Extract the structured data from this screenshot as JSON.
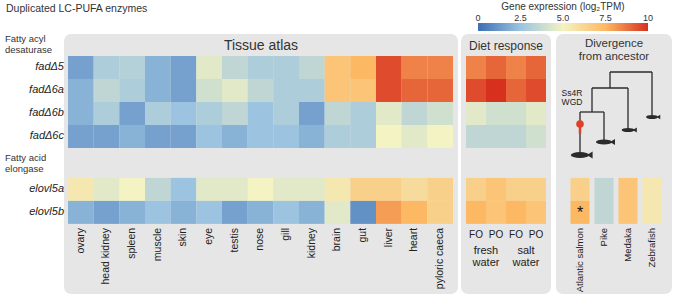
{
  "chart_data": {
    "type": "heatmap",
    "title": "Duplicated LC-PUFA enzymes",
    "colorbar": {
      "label": "Gene expression (log₂TPM)",
      "range": [
        0,
        10
      ],
      "ticks": [
        0,
        2.5,
        {
          "value": 5,
          "label": "5.0"
        },
        7.5,
        10
      ]
    },
    "row_groups": [
      {
        "label": "Fatty acyl desaturase",
        "rows": [
          "fadΔ5",
          "fadΔ6a",
          "fadΔ6b",
          "fadΔ6c"
        ]
      },
      {
        "label": "Fatty acid elongase",
        "rows": [
          "elovl5a",
          "elovl5b"
        ]
      }
    ],
    "panels": [
      {
        "title": "Tissue atlas",
        "columns": [
          "ovary",
          "head kidney",
          "spleen",
          "muscle",
          "skin",
          "eye",
          "testis",
          "nose",
          "gill",
          "kidney",
          "brain",
          "gut",
          "liver",
          "heart",
          "pyloric caeca"
        ],
        "rows": [
          {
            "name": "fadΔ5",
            "values": [
              1.5,
              3,
              3.2,
              2,
              1.5,
              4.5,
              3.5,
              3,
              3,
              3.5,
              7,
              7.5,
              9.5,
              8.5,
              8.5
            ]
          },
          {
            "name": "fadΔ6a",
            "values": [
              2,
              3.5,
              3,
              2,
              1.5,
              4,
              4.5,
              3.5,
              3,
              3,
              7,
              7,
              9.5,
              9,
              9
            ]
          },
          {
            "name": "fadΔ6b",
            "values": [
              2,
              3,
              1.5,
              3,
              2.5,
              3,
              3.5,
              2.5,
              3,
              1.5,
              3.5,
              3,
              4.5,
              3.5,
              4
            ]
          },
          {
            "name": "fadΔ6c",
            "values": [
              1.5,
              1.5,
              2,
              1.5,
              1.5,
              2.5,
              2,
              2.5,
              2.5,
              2,
              3,
              3,
              5,
              4.5,
              5
            ]
          },
          {
            "name": "elovl5a",
            "values": [
              5.5,
              4.5,
              5,
              3.5,
              2.5,
              4.5,
              4.5,
              5,
              4.5,
              4.5,
              5.5,
              6.5,
              6.5,
              6,
              6.5
            ]
          },
          {
            "name": "elovl5b",
            "values": [
              2,
              1.5,
              2,
              2.5,
              2,
              2.5,
              1.5,
              2,
              2.5,
              2,
              4.5,
              1,
              8,
              7.5,
              6.5
            ]
          }
        ]
      },
      {
        "title": "Diet response",
        "columns": [
          "FO",
          "PO",
          "FO",
          "PO"
        ],
        "column_groups": [
          {
            "label": "fresh water",
            "size": 2
          },
          {
            "label": "salt water",
            "size": 2
          }
        ],
        "rows": [
          {
            "name": "fadΔ5",
            "values": [
              8.5,
              9,
              8.5,
              9
            ]
          },
          {
            "name": "fadΔ6a",
            "values": [
              9.5,
              10,
              9,
              9.5
            ]
          },
          {
            "name": "fadΔ6b",
            "values": [
              4.5,
              4,
              4,
              4.5
            ]
          },
          {
            "name": "fadΔ6c",
            "values": [
              3.5,
              3.5,
              3.5,
              4
            ]
          },
          {
            "name": "elovl5a",
            "values": [
              6.5,
              7,
              6.5,
              6.5
            ]
          },
          {
            "name": "elovl5b",
            "values": [
              7.5,
              7,
              7.5,
              7
            ]
          }
        ]
      },
      {
        "title": "Divergence from ancestor",
        "columns": [
          "Atlantic salmon",
          "Pike",
          "Medaka",
          "Zebrafish"
        ],
        "annotation": "Ss4R WGD",
        "cells": [
          {
            "column": "Atlantic salmon",
            "rows": [
              "elovl5a"
            ],
            "value": 6.5
          },
          {
            "column": "Atlantic salmon",
            "rows": [
              "elovl5b"
            ],
            "value": 7.5,
            "label": "*"
          },
          {
            "column": "Pike",
            "rows": [
              "elovl5a",
              "elovl5b"
            ],
            "value": 3.5
          },
          {
            "column": "Medaka",
            "rows": [
              "elovl5a",
              "elovl5b"
            ],
            "value": 7
          },
          {
            "column": "Zebrafish",
            "rows": [
              "elovl5a",
              "elovl5b"
            ],
            "value": 5.5
          }
        ]
      }
    ]
  }
}
